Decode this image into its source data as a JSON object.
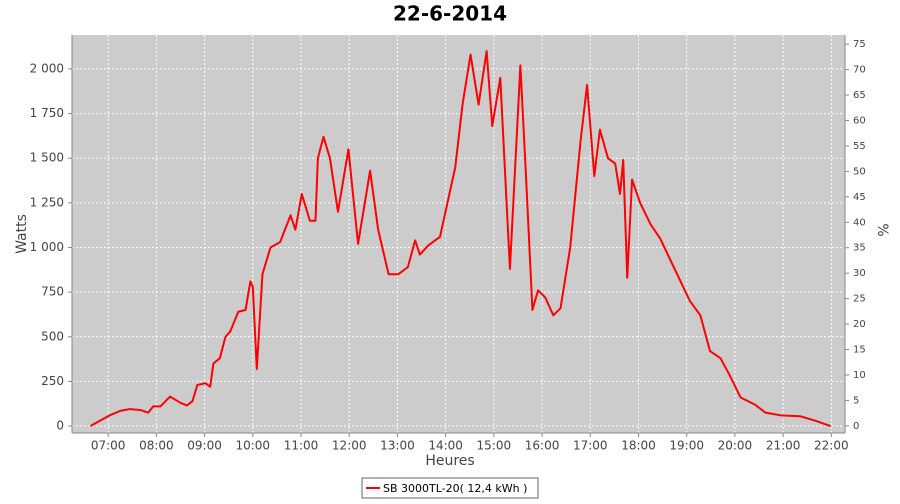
{
  "chart_data": {
    "type": "line",
    "title": "22-6-2014",
    "x_label": "Heures",
    "y_label": "Watts",
    "y2_label": "%",
    "xlim": [
      "06:15",
      "22:17"
    ],
    "xticks": [
      "07:00",
      "08:00",
      "09:00",
      "10:00",
      "11:00",
      "12:00",
      "13:00",
      "14:00",
      "15:00",
      "16:00",
      "17:00",
      "18:00",
      "19:00",
      "20:00",
      "21:00",
      "22:00"
    ],
    "ylim": [
      -39,
      2190
    ],
    "yticks": [
      0,
      250,
      500,
      750,
      {
        "value": 1000,
        "label": "1 000"
      },
      {
        "value": 1250,
        "label": "1 250"
      },
      {
        "value": 1500,
        "label": "1 500"
      },
      {
        "value": 1750,
        "label": "1 750"
      },
      {
        "value": 2000,
        "label": "2 000"
      }
    ],
    "y2lim": [
      -1.4,
      76.8
    ],
    "y2ticks": [
      0,
      5,
      10,
      15,
      20,
      25,
      30,
      35,
      40,
      45,
      50,
      55,
      60,
      65,
      70,
      75
    ],
    "grid": true,
    "legend": "bottom",
    "x": [
      "06:38",
      "06:50",
      "07:02",
      "07:15",
      "07:27",
      "07:40",
      "07:50",
      "07:56",
      "08:05",
      "08:17",
      "08:30",
      "08:38",
      "08:45",
      "08:51",
      "09:01",
      "09:07",
      "09:11",
      "09:19",
      "09:26",
      "09:32",
      "09:42",
      "09:51",
      "09:57",
      "10:00",
      "10:05",
      "10:12",
      "10:22",
      "10:34",
      "10:40",
      "10:47",
      "10:53",
      "11:01",
      "11:11",
      "11:18",
      "11:21",
      "11:28",
      "11:36",
      "11:46",
      "11:59",
      "12:11",
      "12:26",
      "12:36",
      "12:49",
      "13:01",
      "13:13",
      "13:22",
      "13:28",
      "13:38",
      "13:53",
      "14:12",
      "14:21",
      "14:31",
      "14:41",
      "14:51",
      "14:58",
      "15:08",
      "15:20",
      "15:33",
      "15:40",
      "15:48",
      "15:55",
      "16:04",
      "16:14",
      "16:23",
      "16:35",
      "16:48",
      "16:56",
      "17:05",
      "17:12",
      "17:22",
      "17:31",
      "17:37",
      "17:41",
      "17:46",
      "17:52",
      "18:02",
      "18:15",
      "18:27",
      "18:46",
      "19:04",
      "19:17",
      "19:29",
      "19:42",
      "19:54",
      "20:07",
      "20:25",
      "20:38",
      "20:57",
      "21:21",
      "21:40",
      "21:59"
    ],
    "series": [
      {
        "name": "SB 3000TL-20( 12,4 kWh )",
        "color": "#ff0000",
        "values": [
          0,
          30,
          60,
          85,
          95,
          90,
          75,
          110,
          110,
          165,
          130,
          115,
          140,
          230,
          240,
          220,
          350,
          380,
          500,
          530,
          640,
          650,
          810,
          780,
          320,
          850,
          1000,
          1030,
          1100,
          1180,
          1100,
          1300,
          1150,
          1150,
          1500,
          1620,
          1500,
          1200,
          1550,
          1020,
          1430,
          1100,
          850,
          850,
          890,
          1040,
          960,
          1010,
          1060,
          1450,
          1800,
          2080,
          1800,
          2100,
          1680,
          1950,
          880,
          2020,
          1400,
          650,
          760,
          720,
          620,
          660,
          1000,
          1600,
          1910,
          1400,
          1660,
          1500,
          1470,
          1300,
          1490,
          830,
          1380,
          1250,
          1130,
          1050,
          870,
          700,
          620,
          420,
          380,
          280,
          160,
          120,
          75,
          60,
          55,
          30,
          0
        ]
      }
    ]
  }
}
